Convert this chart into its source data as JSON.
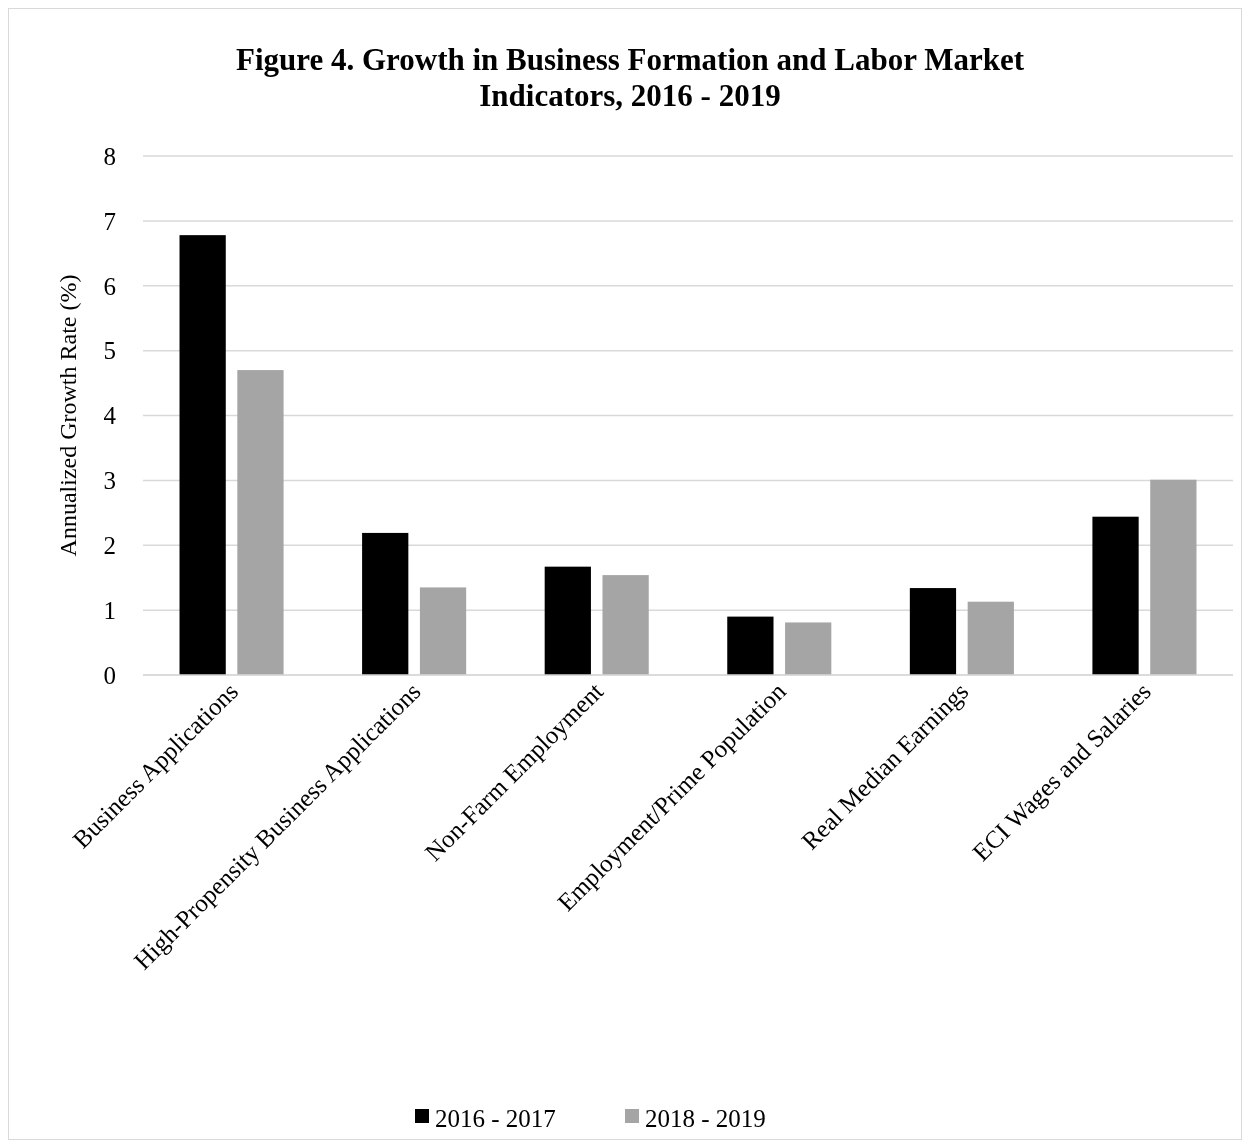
{
  "chart_data": {
    "type": "bar",
    "title": "Figure 4. Growth in Business Formation and Labor Market Indicators, 2016 - 2019",
    "ylabel": "Annualized Growth Rate (%)",
    "categories": [
      "Business Applications",
      "High-Propensity Business Applications",
      "Non-Farm Employment",
      "Employment/Prime Population",
      "Real Median Earnings",
      "ECI Wages and Salaries"
    ],
    "series": [
      {
        "name": "2016 - 2017",
        "color": "#000000",
        "values": [
          6.78,
          2.19,
          1.67,
          0.9,
          1.34,
          2.44
        ]
      },
      {
        "name": "2018 - 2019",
        "color": "#a5a5a5",
        "values": [
          4.7,
          1.35,
          1.54,
          0.81,
          1.13,
          3.01
        ]
      }
    ],
    "ylim": [
      0,
      8
    ],
    "yticks": [
      0,
      1,
      2,
      3,
      4,
      5,
      6,
      7,
      8
    ],
    "grid": "y",
    "legend": "bottom"
  }
}
